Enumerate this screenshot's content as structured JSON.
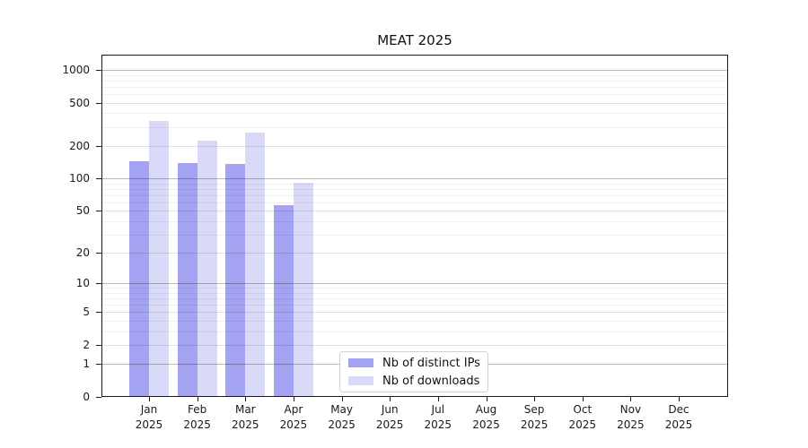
{
  "chart_data": {
    "type": "bar",
    "title": "MEAT 2025",
    "categories": [
      "Jan 2025",
      "Feb 2025",
      "Mar 2025",
      "Apr 2025",
      "May 2025",
      "Jun 2025",
      "Jul 2025",
      "Aug 2025",
      "Sep 2025",
      "Oct 2025",
      "Nov 2025",
      "Dec 2025"
    ],
    "series": [
      {
        "name": "Nb of distinct IPs",
        "color": "#a3a3f2",
        "values": [
          145,
          140,
          137,
          57,
          null,
          null,
          null,
          null,
          null,
          null,
          null,
          null
        ]
      },
      {
        "name": "Nb of downloads",
        "color": "#d9d9f8",
        "values": [
          340,
          224,
          265,
          92,
          null,
          null,
          null,
          null,
          null,
          null,
          null,
          null
        ]
      }
    ],
    "xlabel": "",
    "ylabel": "",
    "y_scale": "log1p",
    "ylim": [
      0,
      1355
    ],
    "y_ticks": [
      0,
      1,
      2,
      5,
      10,
      20,
      50,
      100,
      200,
      500,
      1000
    ],
    "y_minor_ticks": [
      3,
      4,
      6,
      7,
      8,
      9,
      30,
      40,
      60,
      70,
      80,
      90,
      300,
      400,
      600,
      700,
      800,
      900
    ],
    "grid": "horizontal, major and minor, drawn above bars",
    "legend_position": "bottom-center-inside",
    "style": {
      "grid_minor_color": "rgba(0,0,0,0.06)",
      "grid_major_color": "rgba(0,0,0,0.12)",
      "grid_power10_color": "rgba(0,0,0,0.27)",
      "spine_color": "#1a1a1a"
    }
  }
}
